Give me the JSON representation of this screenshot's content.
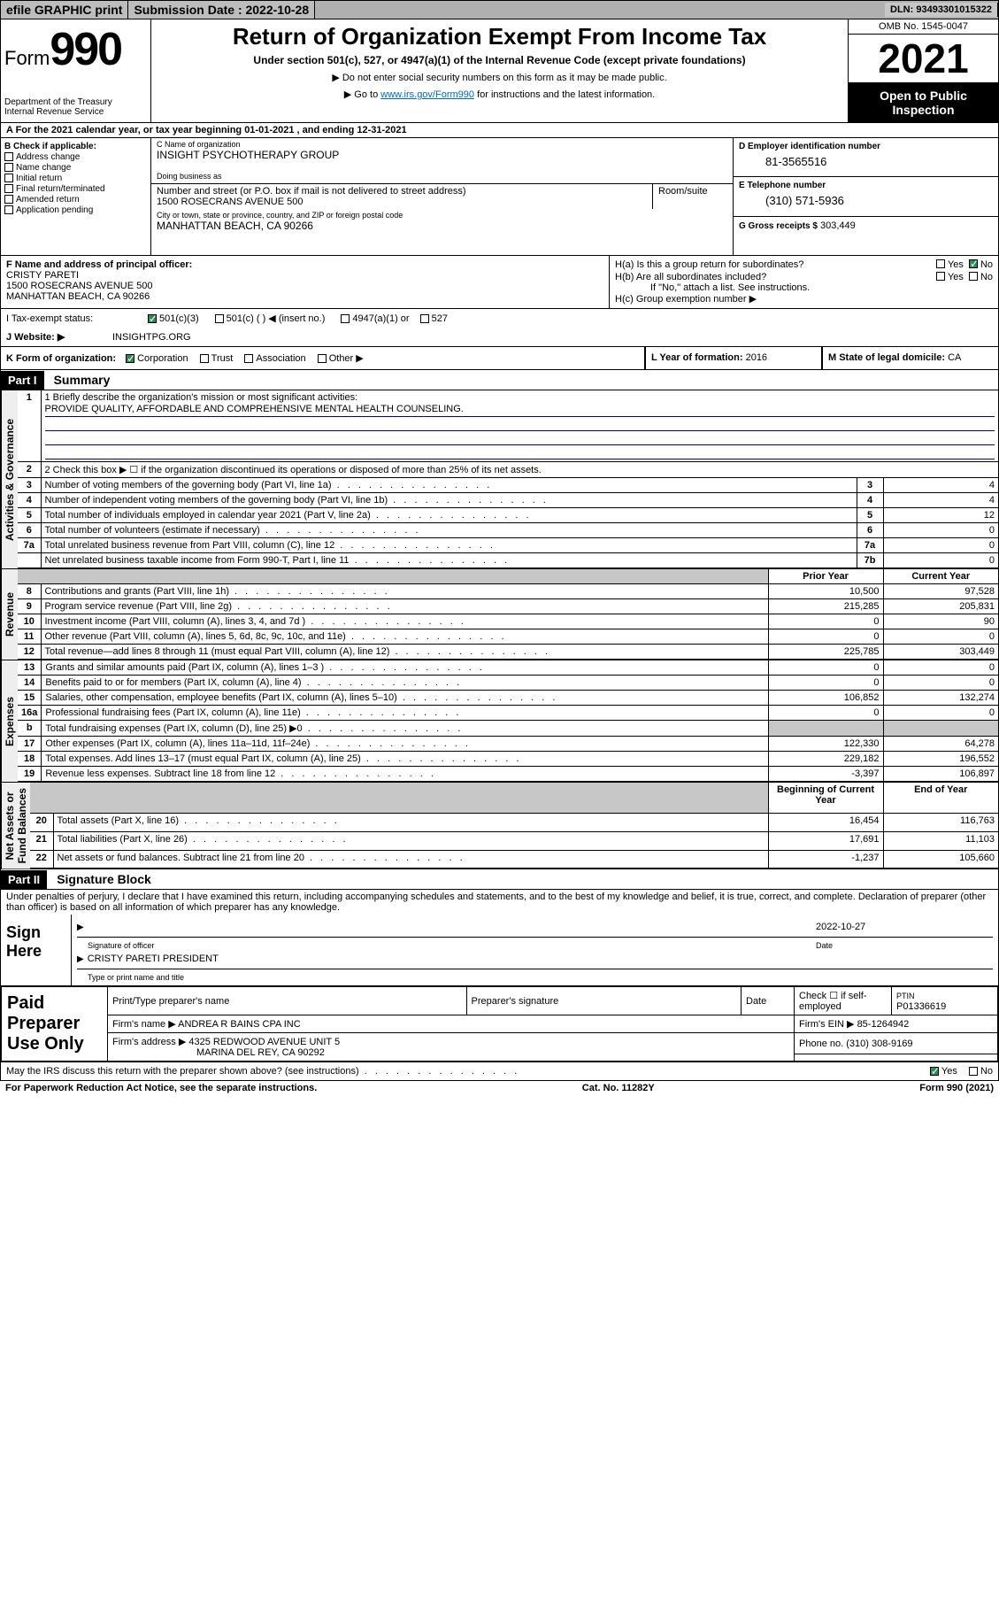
{
  "topbar": {
    "efile": "efile GRAPHIC print",
    "submission_label": "Submission Date : 2022-10-28",
    "dln": "DLN: 93493301015322"
  },
  "header": {
    "form_prefix": "Form",
    "form_number": "990",
    "dept": "Department of the Treasury\nInternal Revenue Service",
    "title": "Return of Organization Exempt From Income Tax",
    "subtitle": "Under section 501(c), 527, or 4947(a)(1) of the Internal Revenue Code (except private foundations)",
    "note1": "▶ Do not enter social security numbers on this form as it may be made public.",
    "note2_pre": "▶ Go to ",
    "note2_link": "www.irs.gov/Form990",
    "note2_post": " for instructions and the latest information.",
    "omb": "OMB No. 1545-0047",
    "year": "2021",
    "public_inspection": "Open to Public Inspection"
  },
  "row_a": {
    "text": "A For the 2021 calendar year, or tax year beginning 01-01-2021   , and ending 12-31-2021"
  },
  "check_b": {
    "header": "B Check if applicable:",
    "items": [
      "Address change",
      "Name change",
      "Initial return",
      "Final return/terminated",
      "Amended return",
      "Application pending"
    ]
  },
  "box_c": {
    "name_label": "C Name of organization",
    "name": "INSIGHT PSYCHOTHERAPY GROUP",
    "dba_label": "Doing business as",
    "dba": "",
    "addr_label": "Number and street (or P.O. box if mail is not delivered to street address)",
    "room_label": "Room/suite",
    "addr": "1500 ROSECRANS AVENUE 500",
    "city_label": "City or town, state or province, country, and ZIP or foreign postal code",
    "city": "MANHATTAN BEACH, CA  90266"
  },
  "box_d": {
    "label": "D Employer identification number",
    "value": "81-3565516"
  },
  "box_e": {
    "label": "E Telephone number",
    "value": "(310) 571-5936"
  },
  "box_g": {
    "label": "G Gross receipts $",
    "value": "303,449"
  },
  "box_f": {
    "label": "F Name and address of principal officer:",
    "name": "CRISTY PARETI",
    "addr1": "1500 ROSECRANS AVENUE 500",
    "addr2": "MANHATTAN BEACH, CA  90266"
  },
  "box_h": {
    "ha": "H(a)  Is this a group return for subordinates?",
    "hb": "H(b)  Are all subordinates included?",
    "hb_note": "If \"No,\" attach a list. See instructions.",
    "hc": "H(c)  Group exemption number ▶",
    "yes": "Yes",
    "no": "No"
  },
  "row_i": {
    "label": "I   Tax-exempt status:",
    "opts": [
      "501(c)(3)",
      "501(c) (  ) ◀ (insert no.)",
      "4947(a)(1) or",
      "527"
    ]
  },
  "row_j": {
    "label": "J   Website: ▶",
    "value": "INSIGHTPG.ORG"
  },
  "row_k": {
    "label": "K Form of organization:",
    "opts": [
      "Corporation",
      "Trust",
      "Association",
      "Other ▶"
    ],
    "l_label": "L Year of formation:",
    "l_value": "2016",
    "m_label": "M State of legal domicile:",
    "m_value": "CA"
  },
  "part1": {
    "hdr": "Part I",
    "title": "Summary"
  },
  "summary": {
    "line1_label": "1  Briefly describe the organization's mission or most significant activities:",
    "line1_value": "PROVIDE QUALITY, AFFORDABLE AND COMPREHENSIVE MENTAL HEALTH COUNSELING.",
    "line2_label": "2   Check this box ▶ ☐  if the organization discontinued its operations or disposed of more than 25% of its net assets.",
    "rows_ag": [
      {
        "n": "3",
        "t": "Number of voting members of the governing body (Part VI, line 1a)",
        "k": "3",
        "v": "4"
      },
      {
        "n": "4",
        "t": "Number of independent voting members of the governing body (Part VI, line 1b)",
        "k": "4",
        "v": "4"
      },
      {
        "n": "5",
        "t": "Total number of individuals employed in calendar year 2021 (Part V, line 2a)",
        "k": "5",
        "v": "12"
      },
      {
        "n": "6",
        "t": "Total number of volunteers (estimate if necessary)",
        "k": "6",
        "v": "0"
      },
      {
        "n": "7a",
        "t": "Total unrelated business revenue from Part VIII, column (C), line 12",
        "k": "7a",
        "v": "0"
      },
      {
        "n": "",
        "t": "Net unrelated business taxable income from Form 990-T, Part I, line 11",
        "k": "7b",
        "v": "0"
      }
    ],
    "hdr_prior": "Prior Year",
    "hdr_current": "Current Year",
    "rows_rev": [
      {
        "n": "8",
        "t": "Contributions and grants (Part VIII, line 1h)",
        "p": "10,500",
        "c": "97,528"
      },
      {
        "n": "9",
        "t": "Program service revenue (Part VIII, line 2g)",
        "p": "215,285",
        "c": "205,831"
      },
      {
        "n": "10",
        "t": "Investment income (Part VIII, column (A), lines 3, 4, and 7d )",
        "p": "0",
        "c": "90"
      },
      {
        "n": "11",
        "t": "Other revenue (Part VIII, column (A), lines 5, 6d, 8c, 9c, 10c, and 11e)",
        "p": "0",
        "c": "0"
      },
      {
        "n": "12",
        "t": "Total revenue—add lines 8 through 11 (must equal Part VIII, column (A), line 12)",
        "p": "225,785",
        "c": "303,449"
      }
    ],
    "rows_exp": [
      {
        "n": "13",
        "t": "Grants and similar amounts paid (Part IX, column (A), lines 1–3 )",
        "p": "0",
        "c": "0"
      },
      {
        "n": "14",
        "t": "Benefits paid to or for members (Part IX, column (A), line 4)",
        "p": "0",
        "c": "0"
      },
      {
        "n": "15",
        "t": "Salaries, other compensation, employee benefits (Part IX, column (A), lines 5–10)",
        "p": "106,852",
        "c": "132,274"
      },
      {
        "n": "16a",
        "t": "Professional fundraising fees (Part IX, column (A), line 11e)",
        "p": "0",
        "c": "0"
      },
      {
        "n": "b",
        "t": "Total fundraising expenses (Part IX, column (D), line 25) ▶0",
        "p": "",
        "c": "",
        "grey": true
      },
      {
        "n": "17",
        "t": "Other expenses (Part IX, column (A), lines 11a–11d, 11f–24e)",
        "p": "122,330",
        "c": "64,278"
      },
      {
        "n": "18",
        "t": "Total expenses. Add lines 13–17 (must equal Part IX, column (A), line 25)",
        "p": "229,182",
        "c": "196,552"
      },
      {
        "n": "19",
        "t": "Revenue less expenses. Subtract line 18 from line 12",
        "p": "-3,397",
        "c": "106,897"
      }
    ],
    "hdr_begin": "Beginning of Current Year",
    "hdr_end": "End of Year",
    "rows_net": [
      {
        "n": "20",
        "t": "Total assets (Part X, line 16)",
        "p": "16,454",
        "c": "116,763"
      },
      {
        "n": "21",
        "t": "Total liabilities (Part X, line 26)",
        "p": "17,691",
        "c": "11,103"
      },
      {
        "n": "22",
        "t": "Net assets or fund balances. Subtract line 21 from line 20",
        "p": "-1,237",
        "c": "105,660"
      }
    ],
    "side_labels": {
      "ag": "Activities & Governance",
      "rev": "Revenue",
      "exp": "Expenses",
      "net": "Net Assets or\nFund Balances"
    }
  },
  "part2": {
    "hdr": "Part II",
    "title": "Signature Block"
  },
  "sig": {
    "decl": "Under penalties of perjury, I declare that I have examined this return, including accompanying schedules and statements, and to the best of my knowledge and belief, it is true, correct, and complete. Declaration of preparer (other than officer) is based on all information of which preparer has any knowledge.",
    "sign_here": "Sign Here",
    "sig_officer": "Signature of officer",
    "date_label": "Date",
    "date_value": "2022-10-27",
    "name_title": "CRISTY PARETI  PRESIDENT",
    "name_title_label": "Type or print name and title"
  },
  "paid": {
    "label": "Paid Preparer Use Only",
    "h": [
      "Print/Type preparer's name",
      "Preparer's signature",
      "Date",
      "Check ☐ if self-employed",
      "PTIN"
    ],
    "ptin": "P01336619",
    "firm_name_label": "Firm's name    ▶",
    "firm_name": "ANDREA R BAINS CPA INC",
    "firm_ein_label": "Firm's EIN ▶",
    "firm_ein": "85-1264942",
    "firm_addr_label": "Firm's address ▶",
    "firm_addr1": "4325 REDWOOD AVENUE UNIT 5",
    "firm_addr2": "MARINA DEL REY, CA  90292",
    "phone_label": "Phone no.",
    "phone": "(310) 308-9169"
  },
  "discuss": {
    "q": "May the IRS discuss this return with the preparer shown above? (see instructions)",
    "yes": "Yes",
    "no": "No"
  },
  "footer": {
    "pra": "For Paperwork Reduction Act Notice, see the separate instructions.",
    "cat": "Cat. No. 11282Y",
    "form": "Form 990 (2021)"
  },
  "colors": {
    "topbar_bg": "#b0b0b0",
    "link": "#0033cc",
    "check_green": "#2e8b57",
    "grey_cell": "#c7c7c7"
  }
}
